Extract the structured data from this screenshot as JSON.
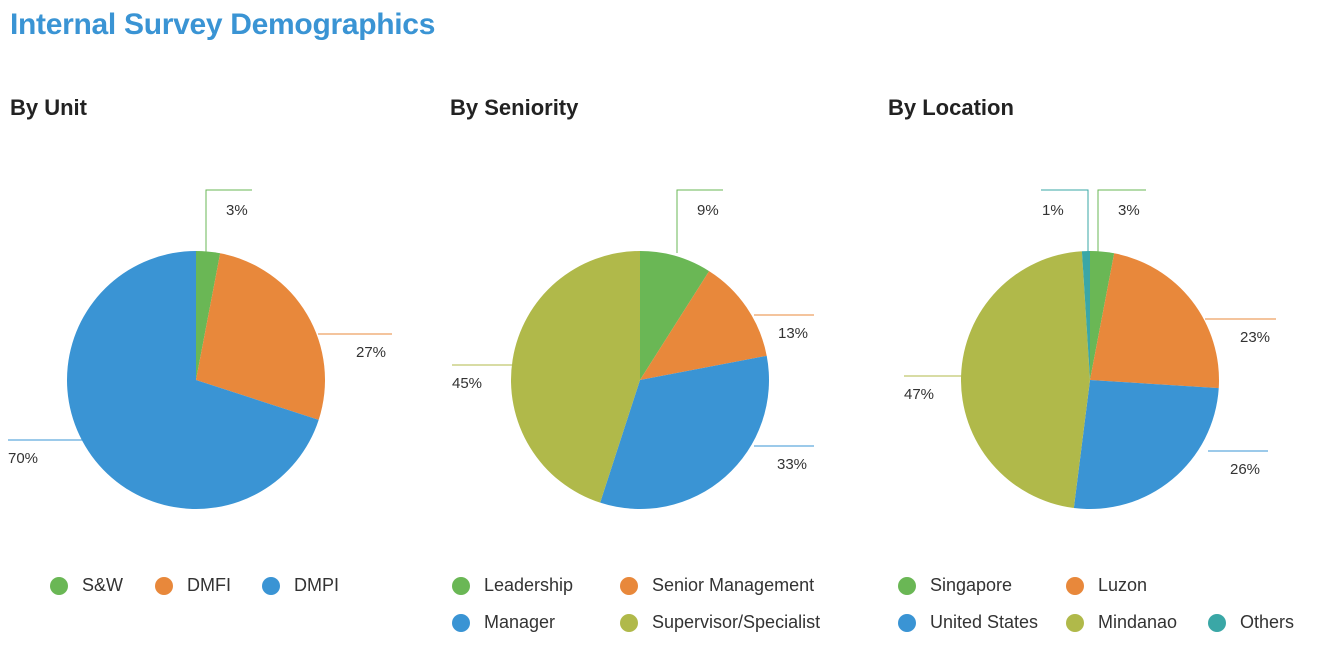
{
  "title": "Internal Survey Demographics",
  "colors": {
    "title": "#3a94d4",
    "green": "#6ab755",
    "orange": "#e8883b",
    "blue": "#3a94d4",
    "olive": "#b0b94a",
    "teal": "#3aa7a6"
  },
  "chart_data": [
    {
      "type": "pie",
      "title": "By Unit",
      "labels": [
        "S&W",
        "DMFI",
        "DMPI"
      ],
      "values": [
        3,
        27,
        70
      ],
      "value_labels": [
        "3%",
        "27%",
        "70%"
      ],
      "colors": [
        "#6ab755",
        "#e8883b",
        "#3a94d4"
      ]
    },
    {
      "type": "pie",
      "title": "By Seniority",
      "labels": [
        "Leadership",
        "Senior Management",
        "Manager",
        "Supervisor/Specialist"
      ],
      "values": [
        9,
        13,
        33,
        45
      ],
      "value_labels": [
        "9%",
        "13%",
        "33%",
        "45%"
      ],
      "colors": [
        "#6ab755",
        "#e8883b",
        "#3a94d4",
        "#b0b94a"
      ]
    },
    {
      "type": "pie",
      "title": "By Location",
      "labels": [
        "Singapore",
        "Luzon",
        "United States",
        "Mindanao",
        "Others"
      ],
      "values": [
        3,
        23,
        26,
        47,
        1
      ],
      "value_labels": [
        "3%",
        "23%",
        "26%",
        "47%",
        "1%"
      ],
      "colors": [
        "#6ab755",
        "#e8883b",
        "#3a94d4",
        "#b0b94a",
        "#3aa7a6"
      ]
    }
  ]
}
